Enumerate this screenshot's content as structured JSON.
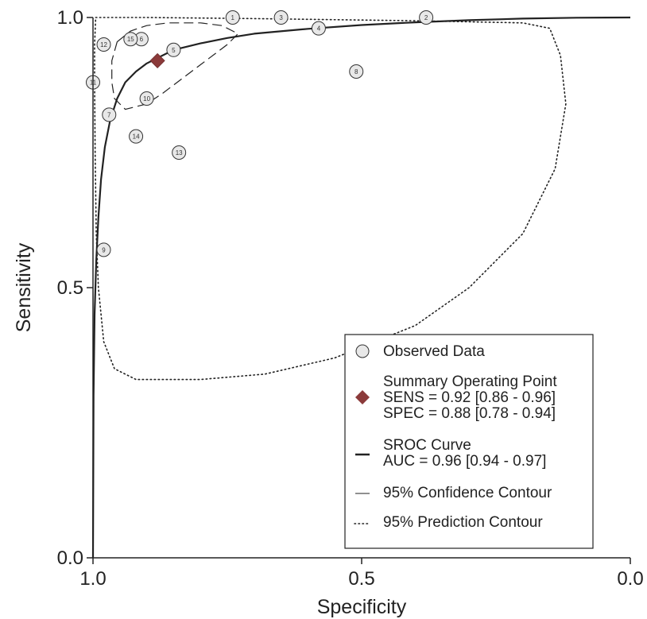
{
  "chart_data": {
    "type": "scatter",
    "xlabel": "Specificity",
    "ylabel": "Sensitivity",
    "xlim": [
      1.0,
      0.0
    ],
    "ylim": [
      0.0,
      1.0
    ],
    "x_axis_reversed": true,
    "x_ticks": [
      1.0,
      0.5,
      0.0
    ],
    "x_tick_labels": [
      "1.0",
      "0.5",
      "0.0"
    ],
    "y_ticks": [
      0.0,
      0.5,
      1.0
    ],
    "y_tick_labels": [
      "0.0",
      "0.5",
      "1.0"
    ],
    "grid": false,
    "legend_position": "bottom-right",
    "colors": {
      "summary_point": "#8b3a3a",
      "observed_fill": "#e8e8e8",
      "line": "#222222"
    },
    "observed_data": [
      {
        "label": "1",
        "specificity": 0.74,
        "sensitivity": 1.0
      },
      {
        "label": "2",
        "specificity": 0.38,
        "sensitivity": 1.0
      },
      {
        "label": "3",
        "specificity": 0.65,
        "sensitivity": 1.0
      },
      {
        "label": "4",
        "specificity": 0.58,
        "sensitivity": 0.98
      },
      {
        "label": "5",
        "specificity": 0.85,
        "sensitivity": 0.94
      },
      {
        "label": "6",
        "specificity": 0.91,
        "sensitivity": 0.96
      },
      {
        "label": "7",
        "specificity": 0.97,
        "sensitivity": 0.82
      },
      {
        "label": "8",
        "specificity": 0.51,
        "sensitivity": 0.9
      },
      {
        "label": "9",
        "specificity": 0.98,
        "sensitivity": 0.57
      },
      {
        "label": "10",
        "specificity": 0.9,
        "sensitivity": 0.85
      },
      {
        "label": "11",
        "specificity": 1.0,
        "sensitivity": 0.88
      },
      {
        "label": "12",
        "specificity": 0.98,
        "sensitivity": 0.95
      },
      {
        "label": "13",
        "specificity": 0.84,
        "sensitivity": 0.75
      },
      {
        "label": "14",
        "specificity": 0.92,
        "sensitivity": 0.78
      },
      {
        "label": "15",
        "specificity": 0.93,
        "sensitivity": 0.96
      }
    ],
    "summary_point": {
      "specificity": 0.88,
      "sensitivity": 0.92
    },
    "sroc_curve": [
      [
        1.0,
        0.0
      ],
      [
        0.999,
        0.3
      ],
      [
        0.997,
        0.45
      ],
      [
        0.994,
        0.55
      ],
      [
        0.99,
        0.63
      ],
      [
        0.985,
        0.7
      ],
      [
        0.978,
        0.76
      ],
      [
        0.968,
        0.81
      ],
      [
        0.955,
        0.85
      ],
      [
        0.94,
        0.88
      ],
      [
        0.92,
        0.9
      ],
      [
        0.9,
        0.915
      ],
      [
        0.88,
        0.925
      ],
      [
        0.85,
        0.94
      ],
      [
        0.8,
        0.952
      ],
      [
        0.75,
        0.962
      ],
      [
        0.7,
        0.97
      ],
      [
        0.6,
        0.979
      ],
      [
        0.5,
        0.986
      ],
      [
        0.4,
        0.991
      ],
      [
        0.3,
        0.995
      ],
      [
        0.2,
        0.998
      ],
      [
        0.1,
        0.9995
      ],
      [
        0.0,
        1.0
      ]
    ],
    "confidence_contour": [
      [
        0.955,
        0.955
      ],
      [
        0.93,
        0.975
      ],
      [
        0.9,
        0.985
      ],
      [
        0.86,
        0.99
      ],
      [
        0.8,
        0.99
      ],
      [
        0.76,
        0.985
      ],
      [
        0.73,
        0.97
      ],
      [
        0.75,
        0.95
      ],
      [
        0.79,
        0.92
      ],
      [
        0.83,
        0.89
      ],
      [
        0.87,
        0.86
      ],
      [
        0.9,
        0.84
      ],
      [
        0.94,
        0.83
      ],
      [
        0.96,
        0.85
      ],
      [
        0.965,
        0.88
      ],
      [
        0.965,
        0.92
      ],
      [
        0.955,
        0.955
      ]
    ],
    "prediction_contour": [
      [
        0.995,
        1.0
      ],
      [
        0.9,
        1.0
      ],
      [
        0.7,
        0.998
      ],
      [
        0.4,
        0.994
      ],
      [
        0.2,
        0.99
      ],
      [
        0.15,
        0.98
      ],
      [
        0.13,
        0.93
      ],
      [
        0.12,
        0.84
      ],
      [
        0.14,
        0.72
      ],
      [
        0.2,
        0.6
      ],
      [
        0.3,
        0.5
      ],
      [
        0.4,
        0.43
      ],
      [
        0.55,
        0.37
      ],
      [
        0.68,
        0.34
      ],
      [
        0.8,
        0.33
      ],
      [
        0.92,
        0.33
      ],
      [
        0.96,
        0.35
      ],
      [
        0.98,
        0.4
      ],
      [
        0.99,
        0.5
      ],
      [
        0.994,
        0.6
      ],
      [
        0.996,
        0.75
      ],
      [
        0.997,
        0.88
      ],
      [
        0.997,
        0.95
      ],
      [
        0.995,
        1.0
      ]
    ],
    "legend": [
      {
        "symbol": "circle",
        "lines": [
          "Observed Data"
        ]
      },
      {
        "symbol": "diamond",
        "lines": [
          "Summary Operating Point",
          "SENS = 0.92 [0.86 - 0.96]",
          "SPEC = 0.88 [0.78 - 0.94]"
        ]
      },
      {
        "symbol": "solid",
        "lines": [
          "SROC Curve",
          "AUC = 0.96 [0.94 - 0.97]"
        ]
      },
      {
        "symbol": "dash",
        "lines": [
          "95% Confidence Contour"
        ]
      },
      {
        "symbol": "dot",
        "lines": [
          "95% Prediction Contour"
        ]
      }
    ]
  }
}
